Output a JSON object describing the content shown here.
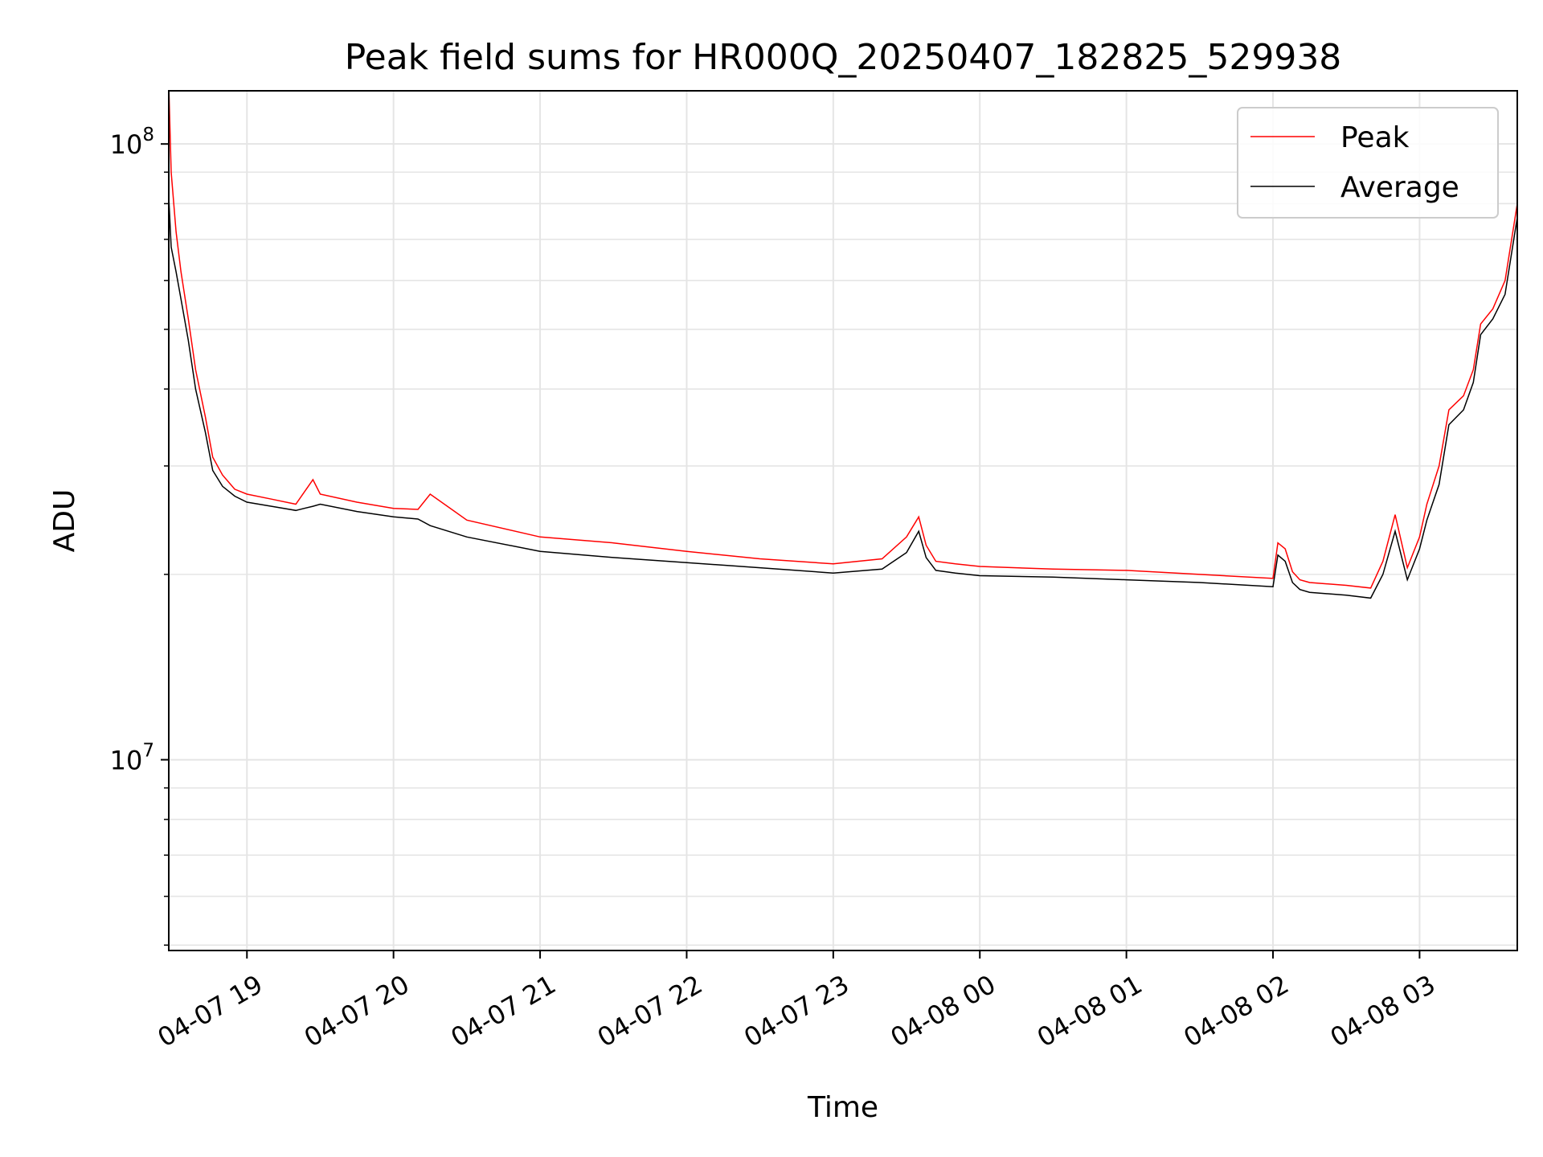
{
  "chart_data": {
    "type": "line",
    "title": "Peak field sums for HR000Q_20250407_182825_529938",
    "xlabel": "Time",
    "ylabel": "ADU",
    "yscale": "log",
    "ylim": [
      4900000,
      122000000
    ],
    "xlim": [
      "2025-04-07 18:28",
      "2025-04-08 03:40"
    ],
    "grid": true,
    "legend_position": "top-right",
    "x_ticks": [
      {
        "label": "04-07 19",
        "t": "2025-04-07 19:00"
      },
      {
        "label": "04-07 20",
        "t": "2025-04-07 20:00"
      },
      {
        "label": "04-07 21",
        "t": "2025-04-07 21:00"
      },
      {
        "label": "04-07 22",
        "t": "2025-04-07 22:00"
      },
      {
        "label": "04-07 23",
        "t": "2025-04-07 23:00"
      },
      {
        "label": "04-08 00",
        "t": "2025-04-08 00:00"
      },
      {
        "label": "04-08 01",
        "t": "2025-04-08 01:00"
      },
      {
        "label": "04-08 02",
        "t": "2025-04-08 02:00"
      },
      {
        "label": "04-08 03",
        "t": "2025-04-08 03:00"
      }
    ],
    "y_ticks": [
      {
        "base": "10",
        "exp": "7",
        "value": 10000000
      },
      {
        "base": "10",
        "exp": "8",
        "value": 100000000
      }
    ],
    "series": [
      {
        "name": "Peak",
        "color": "#ff0000",
        "x": [
          "2025-04-07 18:28",
          "2025-04-07 18:29",
          "2025-04-07 18:31",
          "2025-04-07 18:33",
          "2025-04-07 18:36",
          "2025-04-07 18:39",
          "2025-04-07 18:43",
          "2025-04-07 18:46",
          "2025-04-07 18:50",
          "2025-04-07 18:55",
          "2025-04-07 19:00",
          "2025-04-07 19:10",
          "2025-04-07 19:20",
          "2025-04-07 19:27",
          "2025-04-07 19:30",
          "2025-04-07 19:45",
          "2025-04-07 20:00",
          "2025-04-07 20:10",
          "2025-04-07 20:15",
          "2025-04-07 20:30",
          "2025-04-07 21:00",
          "2025-04-07 21:30",
          "2025-04-07 22:00",
          "2025-04-07 22:30",
          "2025-04-07 23:00",
          "2025-04-07 23:20",
          "2025-04-07 23:30",
          "2025-04-07 23:35",
          "2025-04-07 23:38",
          "2025-04-07 23:42",
          "2025-04-07 23:50",
          "2025-04-08 00:00",
          "2025-04-08 00:30",
          "2025-04-08 01:00",
          "2025-04-08 01:30",
          "2025-04-08 02:00",
          "2025-04-08 02:02",
          "2025-04-08 02:05",
          "2025-04-08 02:08",
          "2025-04-08 02:11",
          "2025-04-08 02:15",
          "2025-04-08 02:30",
          "2025-04-08 02:40",
          "2025-04-08 02:45",
          "2025-04-08 02:50",
          "2025-04-08 02:55",
          "2025-04-08 03:00",
          "2025-04-08 03:03",
          "2025-04-08 03:08",
          "2025-04-08 03:12",
          "2025-04-08 03:18",
          "2025-04-08 03:22",
          "2025-04-08 03:25",
          "2025-04-08 03:30",
          "2025-04-08 03:35",
          "2025-04-08 03:40"
        ],
        "y": [
          125000000,
          90000000,
          72000000,
          62000000,
          52000000,
          43000000,
          36000000,
          31000000,
          29000000,
          27500000,
          27000000,
          26500000,
          26000000,
          28500000,
          27000000,
          26200000,
          25600000,
          25500000,
          27000000,
          24500000,
          23000000,
          22500000,
          21800000,
          21200000,
          20800000,
          21200000,
          23000000,
          24800000,
          22300000,
          21000000,
          20800000,
          20600000,
          20400000,
          20300000,
          20000000,
          19700000,
          22500000,
          22000000,
          20200000,
          19600000,
          19400000,
          19200000,
          19000000,
          21000000,
          25000000,
          20500000,
          23000000,
          26000000,
          30000000,
          37000000,
          39000000,
          43000000,
          51000000,
          54000000,
          60000000,
          80000000
        ]
      },
      {
        "name": "Average",
        "color": "#000000",
        "x": [
          "2025-04-07 18:28",
          "2025-04-07 18:29",
          "2025-04-07 18:31",
          "2025-04-07 18:33",
          "2025-04-07 18:36",
          "2025-04-07 18:39",
          "2025-04-07 18:43",
          "2025-04-07 18:46",
          "2025-04-07 18:50",
          "2025-04-07 18:55",
          "2025-04-07 19:00",
          "2025-04-07 19:10",
          "2025-04-07 19:20",
          "2025-04-07 19:27",
          "2025-04-07 19:30",
          "2025-04-07 19:45",
          "2025-04-07 20:00",
          "2025-04-07 20:10",
          "2025-04-07 20:15",
          "2025-04-07 20:30",
          "2025-04-07 21:00",
          "2025-04-07 21:30",
          "2025-04-07 22:00",
          "2025-04-07 22:30",
          "2025-04-07 23:00",
          "2025-04-07 23:20",
          "2025-04-07 23:30",
          "2025-04-07 23:35",
          "2025-04-07 23:38",
          "2025-04-07 23:42",
          "2025-04-07 23:50",
          "2025-04-08 00:00",
          "2025-04-08 00:30",
          "2025-04-08 01:00",
          "2025-04-08 01:30",
          "2025-04-08 02:00",
          "2025-04-08 02:02",
          "2025-04-08 02:05",
          "2025-04-08 02:08",
          "2025-04-08 02:11",
          "2025-04-08 02:15",
          "2025-04-08 02:30",
          "2025-04-08 02:40",
          "2025-04-08 02:45",
          "2025-04-08 02:50",
          "2025-04-08 02:55",
          "2025-04-08 03:00",
          "2025-04-08 03:03",
          "2025-04-08 03:08",
          "2025-04-08 03:12",
          "2025-04-08 03:18",
          "2025-04-08 03:22",
          "2025-04-08 03:25",
          "2025-04-08 03:30",
          "2025-04-08 03:35",
          "2025-04-08 03:40"
        ],
        "y": [
          82000000,
          68000000,
          62000000,
          56000000,
          48000000,
          40000000,
          34000000,
          29500000,
          27800000,
          26800000,
          26200000,
          25800000,
          25400000,
          25800000,
          26000000,
          25300000,
          24800000,
          24600000,
          24000000,
          23000000,
          21800000,
          21300000,
          20900000,
          20500000,
          20100000,
          20400000,
          21700000,
          23500000,
          21300000,
          20300000,
          20100000,
          19900000,
          19800000,
          19600000,
          19400000,
          19100000,
          21500000,
          21000000,
          19400000,
          18900000,
          18700000,
          18500000,
          18300000,
          20000000,
          23500000,
          19600000,
          22000000,
          24500000,
          28000000,
          35000000,
          37000000,
          41000000,
          49000000,
          52000000,
          57000000,
          76000000
        ]
      }
    ]
  }
}
